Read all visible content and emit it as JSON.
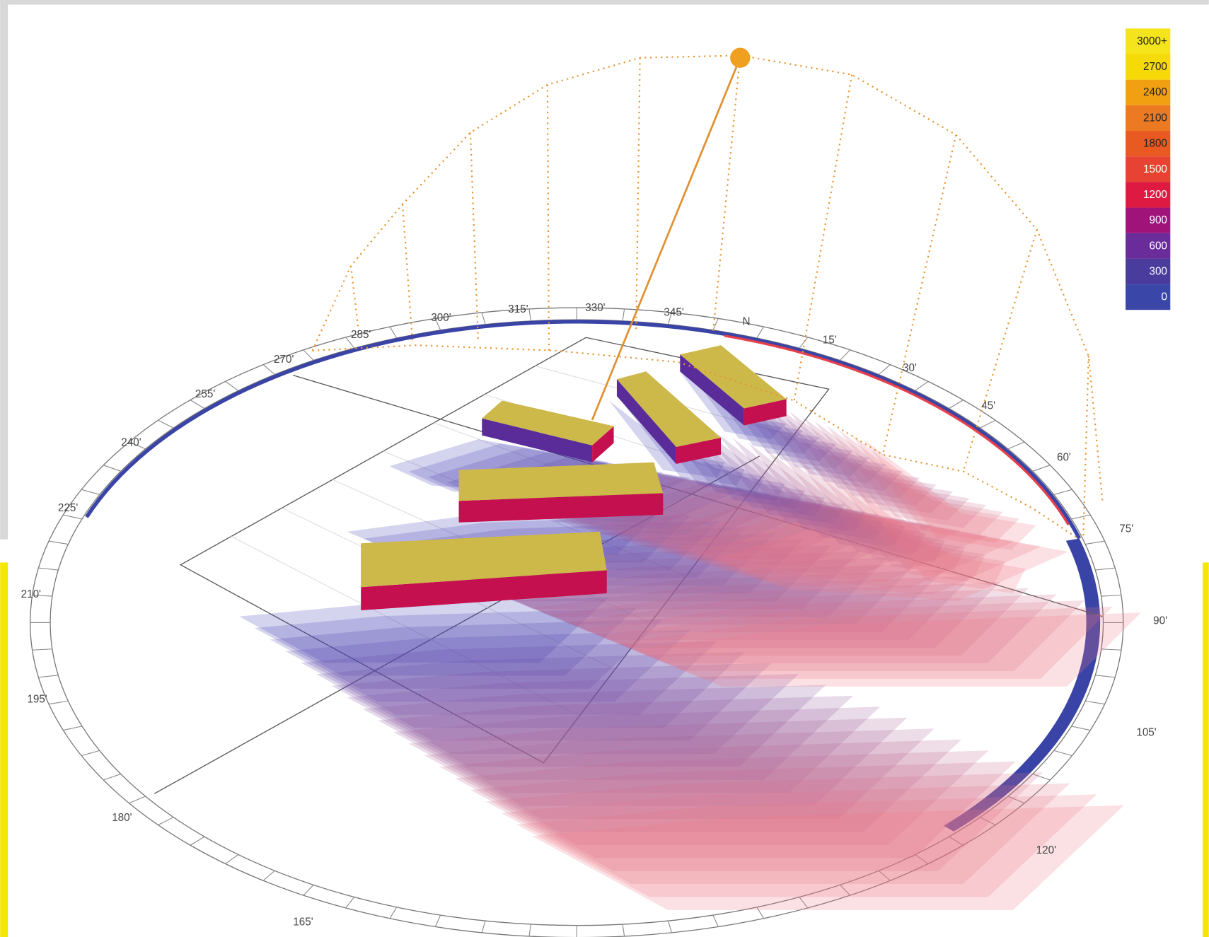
{
  "legend": {
    "items": [
      {
        "label": "3000+",
        "color": "#f4e41c"
      },
      {
        "label": "2700",
        "color": "#f6da08"
      },
      {
        "label": "2400",
        "color": "#f0a010"
      },
      {
        "label": "2100",
        "color": "#ec7a22"
      },
      {
        "label": "1800",
        "color": "#e85a22"
      },
      {
        "label": "1500",
        "color": "#e84232"
      },
      {
        "label": "1200",
        "color": "#de1a42"
      },
      {
        "label": "900",
        "color": "#a0147a"
      },
      {
        "label": "600",
        "color": "#6a2c9a"
      },
      {
        "label": "300",
        "color": "#4a3c9c"
      },
      {
        "label": "0",
        "color": "#3a46a8"
      }
    ]
  },
  "compass": {
    "labels": [
      "270'",
      "285'",
      "300'",
      "315'",
      "330'",
      "345'",
      "N",
      "15'",
      "30'",
      "45'",
      "60'",
      "75'",
      "90'",
      "105'",
      "120'",
      "165'",
      "180'",
      "195'",
      "210'",
      "225'",
      "240'",
      "255'"
    ]
  }
}
